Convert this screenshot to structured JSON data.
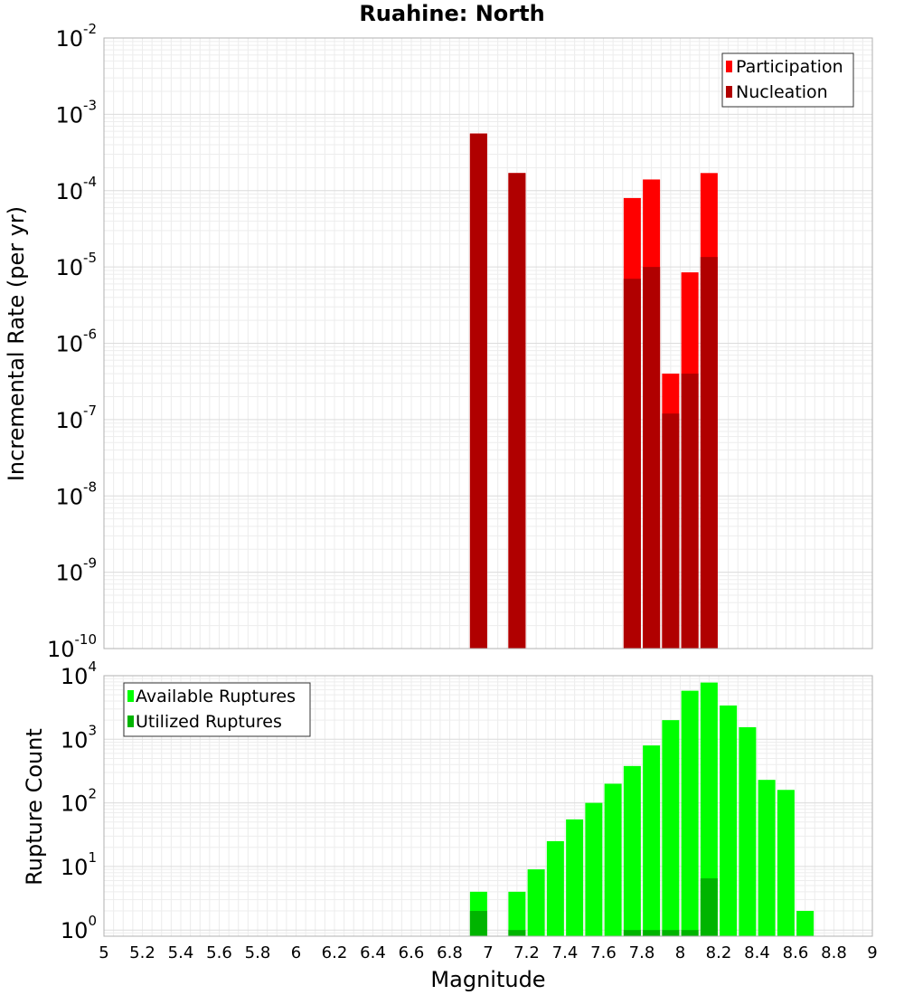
{
  "chart_data": [
    {
      "type": "bar",
      "title": "Ruahine: North",
      "ylabel": "Incremental Rate (per yr)",
      "xlabel": "",
      "yscale": "log",
      "xlim": [
        5,
        9
      ],
      "ylim": [
        1e-10,
        0.01
      ],
      "yticks": [
        {
          "base": "10",
          "exp": "-10",
          "value": 1e-10
        },
        {
          "base": "10",
          "exp": "-9",
          "value": 1e-09
        },
        {
          "base": "10",
          "exp": "-8",
          "value": 1e-08
        },
        {
          "base": "10",
          "exp": "-7",
          "value": 1e-07
        },
        {
          "base": "10",
          "exp": "-6",
          "value": 1e-06
        },
        {
          "base": "10",
          "exp": "-5",
          "value": 1e-05
        },
        {
          "base": "10",
          "exp": "-4",
          "value": 0.0001
        },
        {
          "base": "10",
          "exp": "-3",
          "value": 0.001
        },
        {
          "base": "10",
          "exp": "-2",
          "value": 0.01
        }
      ],
      "legend_position": "top-right",
      "grid": true,
      "series": [
        {
          "name": "Participation",
          "color": "#ff0000",
          "x": [
            6.95,
            7.15,
            7.75,
            7.85,
            7.95,
            8.05,
            8.15
          ],
          "values": [
            0.00056,
            0.00017,
            8e-05,
            0.00014,
            4e-07,
            8.5e-06,
            0.00017
          ]
        },
        {
          "name": "Nucleation",
          "color": "#b00000",
          "x": [
            6.95,
            7.15,
            7.75,
            7.85,
            7.95,
            8.05,
            8.15
          ],
          "values": [
            0.00056,
            0.00017,
            7e-06,
            1e-05,
            1.2e-07,
            4e-07,
            1.35e-05
          ]
        }
      ]
    },
    {
      "type": "bar",
      "title": "",
      "ylabel": "Rupture Count",
      "xlabel": "Magnitude",
      "yscale": "log",
      "xlim": [
        5,
        9
      ],
      "ylim": [
        0.8,
        10000
      ],
      "xticks": [
        "5",
        "5.2",
        "5.4",
        "5.6",
        "5.8",
        "6",
        "6.2",
        "6.4",
        "6.6",
        "6.8",
        "7",
        "7.2",
        "7.4",
        "7.6",
        "7.8",
        "8",
        "8.2",
        "8.4",
        "8.6",
        "8.8",
        "9"
      ],
      "yticks": [
        {
          "base": "10",
          "exp": "0",
          "value": 1
        },
        {
          "base": "10",
          "exp": "1",
          "value": 10
        },
        {
          "base": "10",
          "exp": "2",
          "value": 100
        },
        {
          "base": "10",
          "exp": "3",
          "value": 1000
        },
        {
          "base": "10",
          "exp": "4",
          "value": 10000
        }
      ],
      "legend_position": "top-left",
      "grid": true,
      "series": [
        {
          "name": "Available Ruptures",
          "color": "#00ff00",
          "x": [
            6.95,
            7.15,
            7.25,
            7.35,
            7.45,
            7.55,
            7.65,
            7.75,
            7.85,
            7.95,
            8.05,
            8.15,
            8.25,
            8.35,
            8.45,
            8.55,
            8.65
          ],
          "values": [
            4,
            4,
            9,
            25,
            55,
            100,
            200,
            380,
            800,
            2000,
            5800,
            7800,
            3400,
            1550,
            230,
            160,
            2
          ]
        },
        {
          "name": "Utilized Ruptures",
          "color": "#00b400",
          "x": [
            6.95,
            7.15,
            7.75,
            7.85,
            7.95,
            8.05,
            8.15
          ],
          "values": [
            2,
            1,
            1,
            1,
            1,
            1,
            6.5
          ]
        }
      ]
    }
  ]
}
